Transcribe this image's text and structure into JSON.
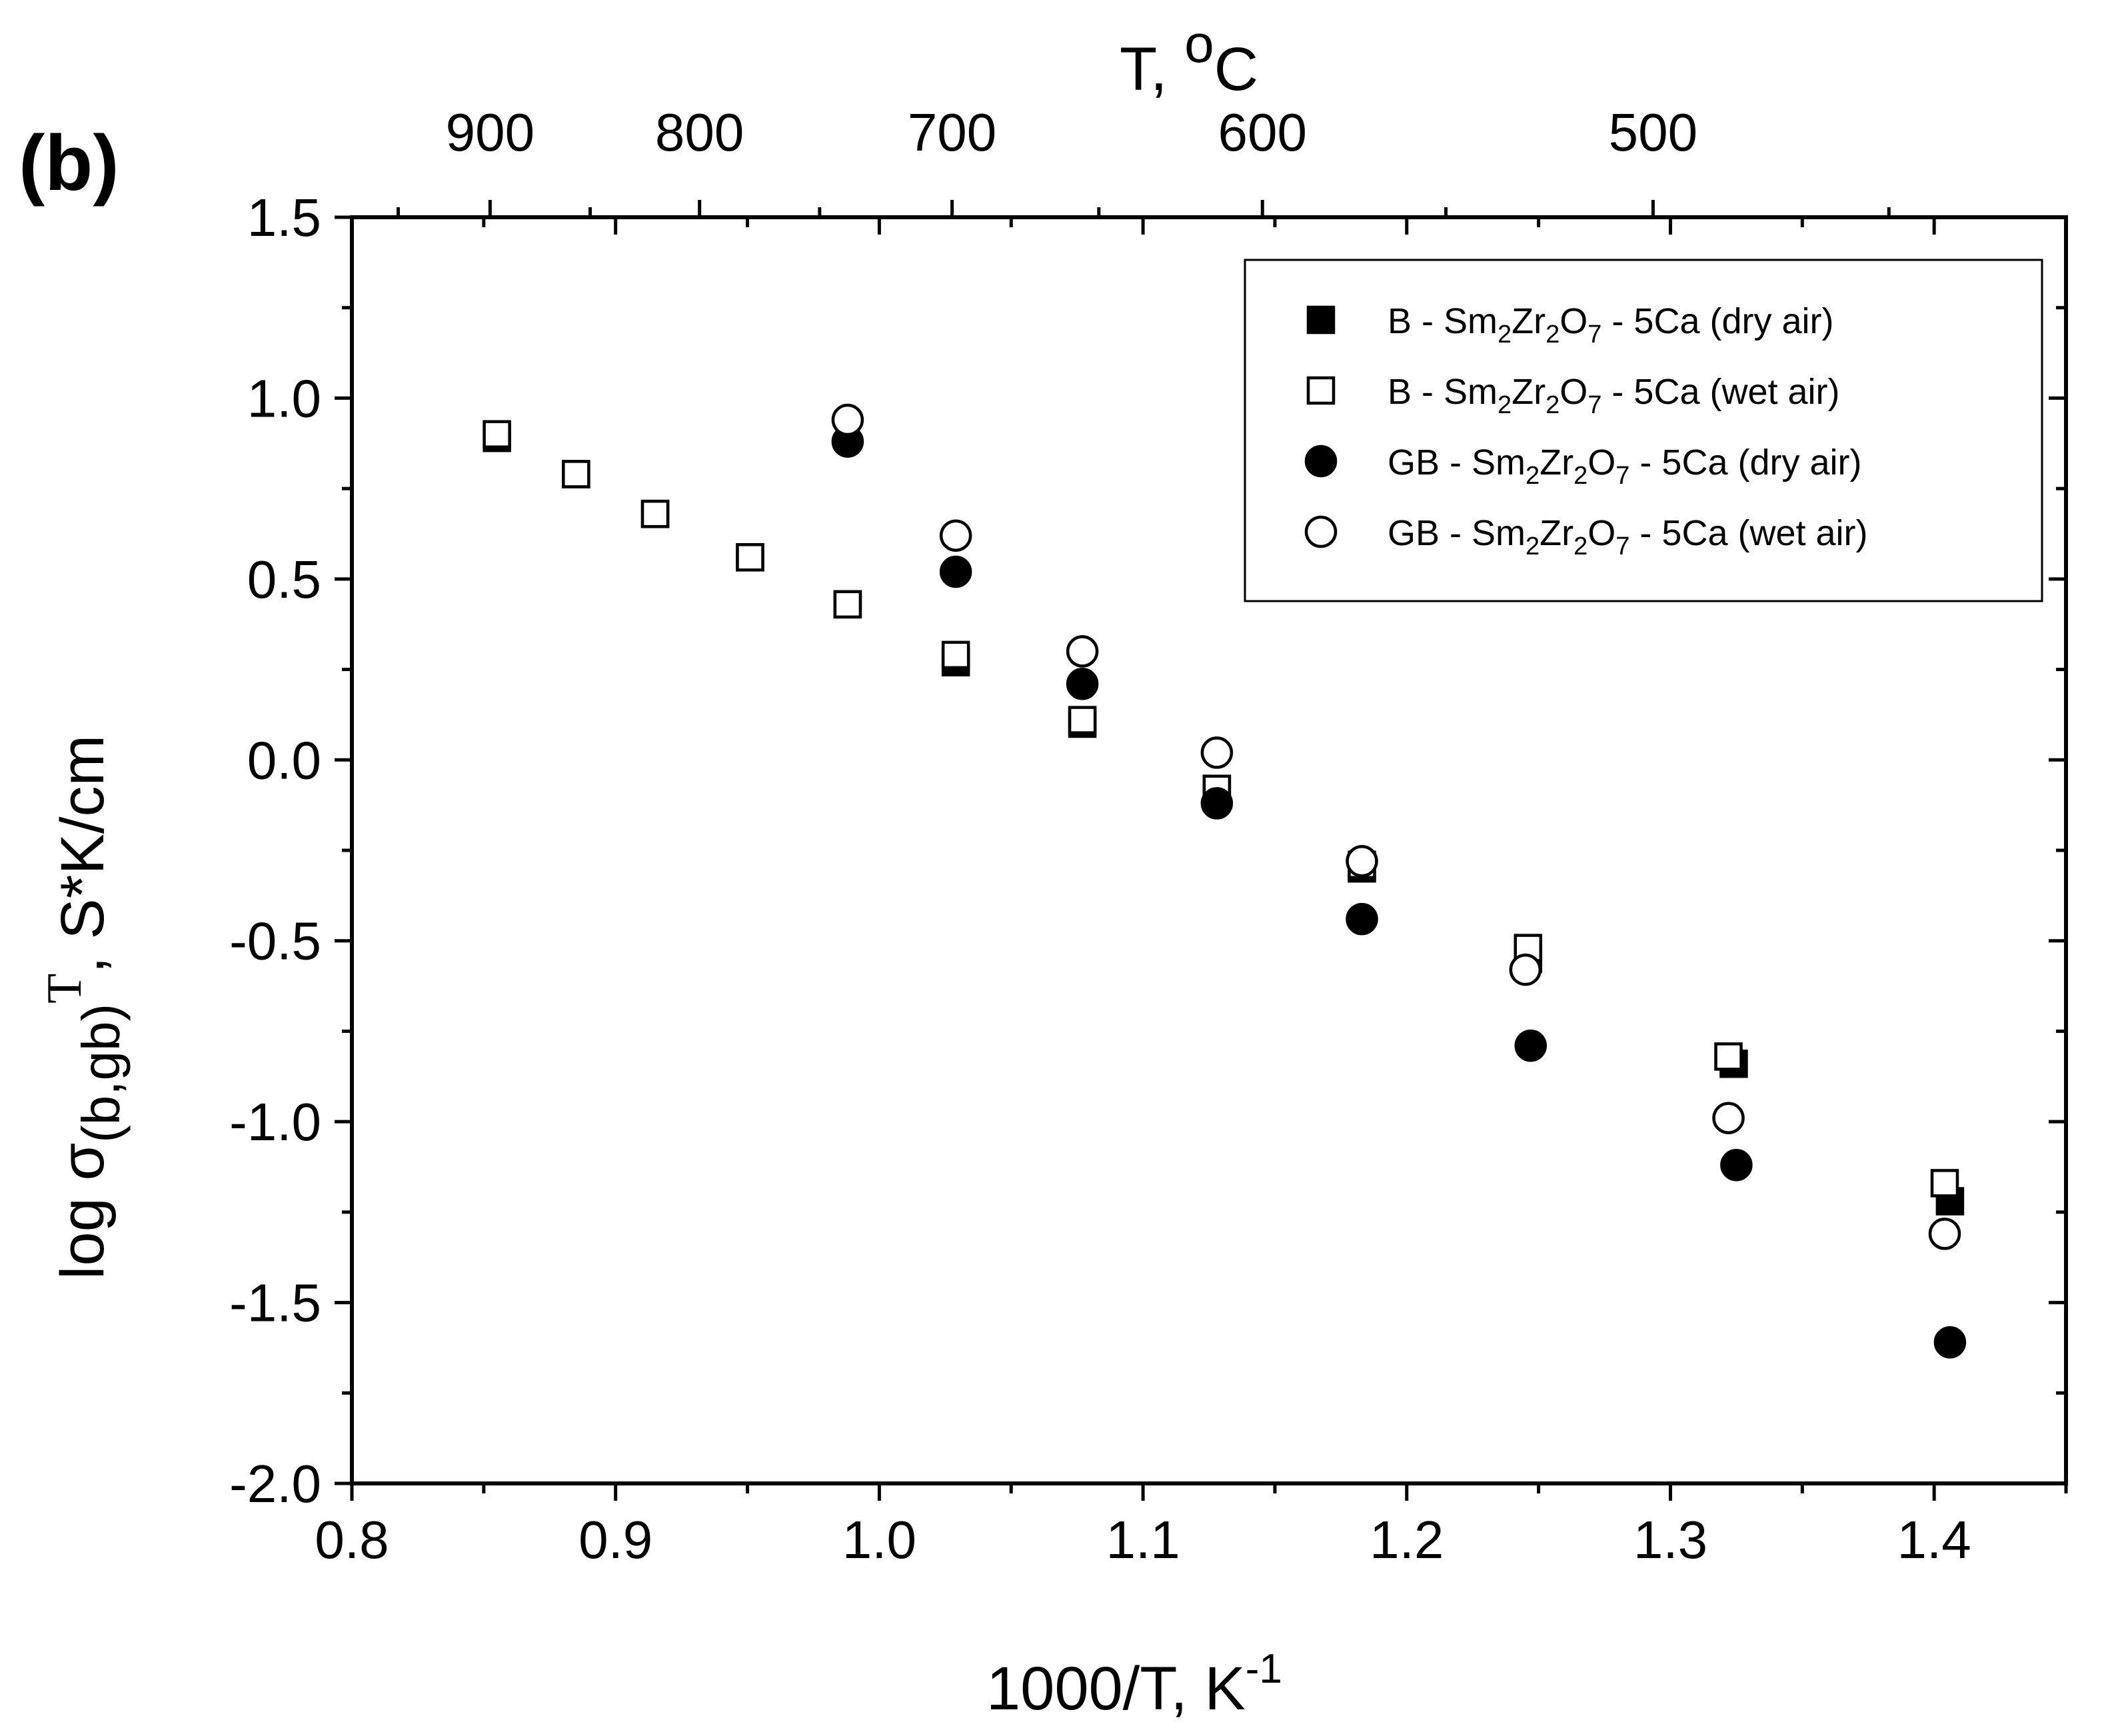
{
  "chart_data": {
    "type": "scatter",
    "panel_label": "(b)",
    "xlabel": "1000/T, K",
    "xlabel_sup": "-1",
    "ylabel_prefix": "log σ",
    "ylabel_sub": "(b,gb)",
    "ylabel_sup": "T",
    "ylabel_suffix": ", S*K/cm",
    "top_xlabel": "T, ",
    "top_xlabel_sup": "o",
    "top_xlabel_unit": "C",
    "xlim": [
      0.8,
      1.45
    ],
    "ylim": [
      -2.0,
      1.5
    ],
    "x_ticks": [
      0.8,
      0.9,
      1.0,
      1.1,
      1.2,
      1.3,
      1.4
    ],
    "x_tick_labels": [
      "0.8",
      "0.9",
      "1.0",
      "1.1",
      "1.2",
      "1.3",
      "1.4"
    ],
    "y_ticks": [
      -2.0,
      -1.5,
      -1.0,
      -0.5,
      0.0,
      0.5,
      1.0,
      1.5
    ],
    "y_tick_labels": [
      "-2.0",
      "-1.5",
      "-1.0",
      "-0.5",
      "0.0",
      "0.5",
      "1.0",
      "1.5"
    ],
    "top_ticks_celsius": [
      900,
      800,
      700,
      600,
      500
    ],
    "top_tick_labels": [
      "900",
      "800",
      "700",
      "600",
      "500"
    ],
    "legend_position": "top-right",
    "series": [
      {
        "label_prefix": "B - Sm",
        "label_suffix": " - 5Ca (dry air)",
        "marker": "square",
        "filled": true,
        "x": [
          0.855,
          0.885,
          0.915,
          0.951,
          0.988,
          1.029,
          1.077,
          1.128,
          1.183,
          1.246,
          1.324,
          1.406
        ],
        "y": [
          0.89,
          0.79,
          0.68,
          0.56,
          0.43,
          0.27,
          0.1,
          -0.08,
          -0.3,
          -0.55,
          -0.84,
          -1.22
        ]
      },
      {
        "label_prefix": "B - Sm",
        "label_suffix": " - 5Ca (wet air)",
        "marker": "square",
        "filled": false,
        "x": [
          0.855,
          0.885,
          0.915,
          0.951,
          0.988,
          1.029,
          1.077,
          1.128,
          1.183,
          1.246,
          1.322,
          1.404
        ],
        "y": [
          0.9,
          0.79,
          0.68,
          0.56,
          0.43,
          0.29,
          0.11,
          -0.08,
          -0.29,
          -0.52,
          -0.82,
          -1.17
        ]
      },
      {
        "label_prefix": "GB - Sm",
        "label_suffix": " - 5Ca (dry air)",
        "marker": "circle",
        "filled": true,
        "x": [
          0.988,
          1.029,
          1.077,
          1.128,
          1.183,
          1.247,
          1.325,
          1.406
        ],
        "y": [
          0.88,
          0.52,
          0.21,
          -0.12,
          -0.44,
          -0.79,
          -1.12,
          -1.61
        ]
      },
      {
        "label_prefix": "GB - Sm",
        "label_suffix": " - 5Ca (wet air)",
        "marker": "circle",
        "filled": false,
        "x": [
          0.988,
          1.029,
          1.077,
          1.128,
          1.183,
          1.245,
          1.322,
          1.404
        ],
        "y": [
          0.94,
          0.62,
          0.3,
          0.02,
          -0.28,
          -0.58,
          -0.99,
          -1.31
        ]
      }
    ],
    "formula_sub1": "2",
    "formula_mid": "Zr",
    "formula_sub2": "2",
    "formula_o": "O",
    "formula_sub3": "7"
  }
}
